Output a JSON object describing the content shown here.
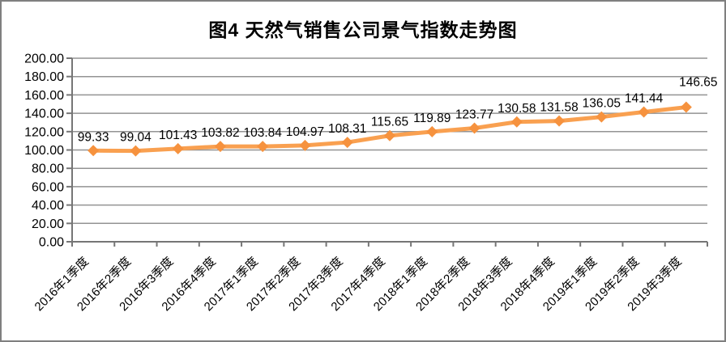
{
  "chart_data": {
    "type": "line",
    "title": "图4 天然气销售公司景气指数走势图",
    "categories": [
      "2016年1季度",
      "2016年2季度",
      "2016年3季度",
      "2016年4季度",
      "2017年1季度",
      "2017年2季度",
      "2017年3季度",
      "2017年4季度",
      "2018年1季度",
      "2018年2季度",
      "2018年3季度",
      "2018年4季度",
      "2019年1季度",
      "2019年2季度",
      "2019年3季度"
    ],
    "values": [
      99.33,
      99.04,
      101.43,
      103.82,
      103.84,
      104.97,
      108.31,
      115.65,
      119.89,
      123.77,
      130.58,
      131.58,
      136.05,
      141.44,
      146.65
    ],
    "data_labels": [
      "99.33",
      "99.04",
      "101.43",
      "103.82",
      "103.84",
      "104.97",
      "108.31",
      "115.65",
      "119.89",
      "123.77",
      "130.58",
      "131.58",
      "136.05",
      "141.44",
      "146.65"
    ],
    "xlabel": "",
    "ylabel": "",
    "ylim": [
      0,
      200
    ],
    "ytick_step": 20,
    "ytick_labels": [
      "0.00",
      "20.00",
      "40.00",
      "60.00",
      "80.00",
      "100.00",
      "120.00",
      "140.00",
      "160.00",
      "180.00",
      "200.00"
    ],
    "grid": true,
    "legend_position": "none",
    "colors": {
      "line": "#F9A050",
      "marker": "#F6923E",
      "gridline": "#939393",
      "axis": "#767676",
      "border": "#7F7F7F",
      "text": "#000000"
    }
  }
}
